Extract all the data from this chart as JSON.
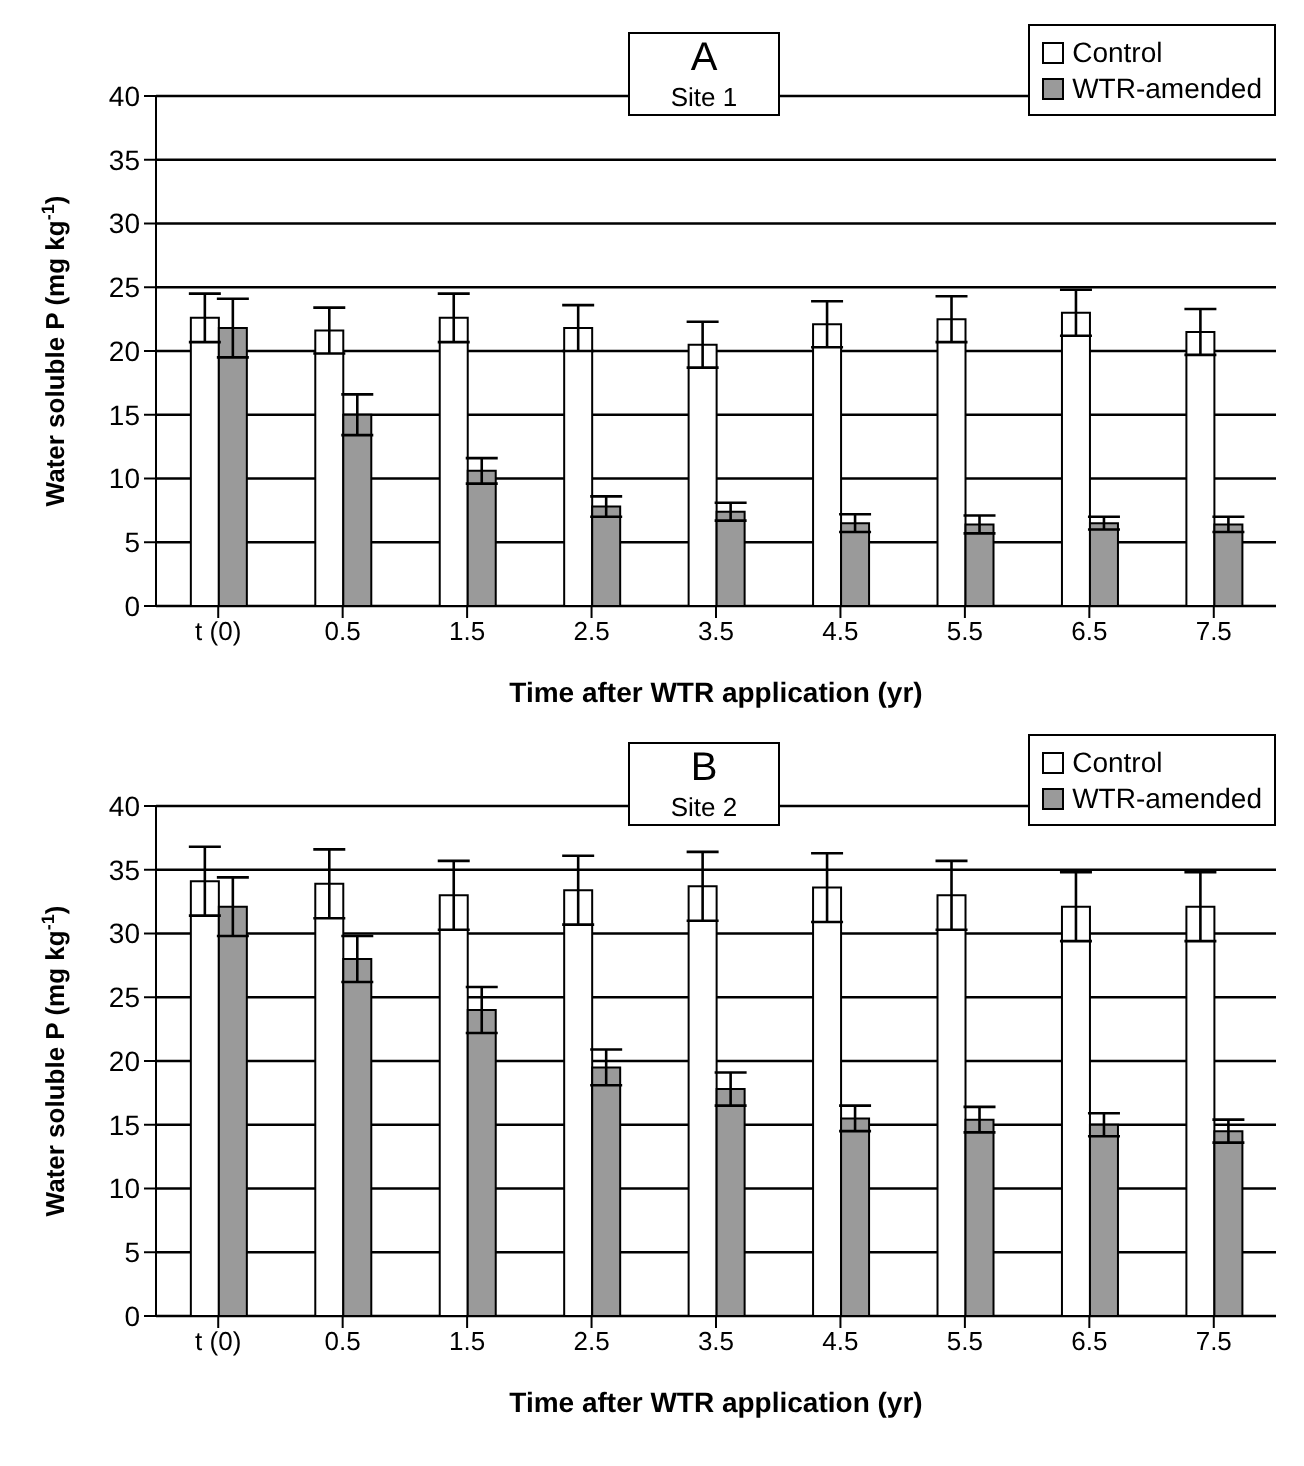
{
  "chart_data": [
    {
      "type": "bar",
      "title": "A",
      "subtitle": "Site 1",
      "xlabel": "Time after WTR application (yr)",
      "ylabel": "Water soluble P (mg kg$^{-1}$)",
      "categories": [
        "t (0)",
        "0.5",
        "1.5",
        "2.5",
        "3.5",
        "4.5",
        "5.5",
        "6.5",
        "7.5"
      ],
      "series": [
        {
          "name": "Control",
          "color": "#ffffff",
          "values": [
            22.6,
            21.6,
            22.6,
            21.8,
            20.5,
            22.1,
            22.5,
            23.0,
            21.5
          ],
          "errors": [
            1.9,
            1.8,
            1.9,
            1.8,
            1.8,
            1.8,
            1.8,
            1.8,
            1.8
          ]
        },
        {
          "name": "WTR-amended",
          "color": "#9a9a9a",
          "values": [
            21.8,
            15.0,
            10.6,
            7.8,
            7.4,
            6.5,
            6.4,
            6.5,
            6.4
          ],
          "errors": [
            2.3,
            1.6,
            1.0,
            0.8,
            0.7,
            0.7,
            0.7,
            0.5,
            0.6
          ]
        }
      ],
      "ylim": [
        0,
        40
      ],
      "yticks": [
        0,
        5,
        10,
        15,
        20,
        25,
        30,
        35,
        40
      ],
      "grid": "y",
      "legend": "top right"
    },
    {
      "type": "bar",
      "title": "B",
      "subtitle": "Site 2",
      "xlabel": "Time after WTR application (yr)",
      "ylabel": "Water soluble P (mg kg$^{-1}$)",
      "categories": [
        "t (0)",
        "0.5",
        "1.5",
        "2.5",
        "3.5",
        "4.5",
        "5.5",
        "6.5",
        "7.5"
      ],
      "series": [
        {
          "name": "Control",
          "color": "#ffffff",
          "values": [
            34.1,
            33.9,
            33.0,
            33.4,
            33.7,
            33.6,
            33.0,
            32.1,
            32.1
          ],
          "errors": [
            2.7,
            2.7,
            2.7,
            2.7,
            2.7,
            2.7,
            2.7,
            2.7,
            2.7
          ]
        },
        {
          "name": "WTR-amended",
          "color": "#9a9a9a",
          "values": [
            32.1,
            28.0,
            24.0,
            19.5,
            17.8,
            15.5,
            15.4,
            15.0,
            14.5
          ],
          "errors": [
            2.3,
            1.8,
            1.8,
            1.4,
            1.3,
            1.0,
            1.0,
            0.9,
            0.9
          ]
        }
      ],
      "ylim": [
        0,
        40
      ],
      "yticks": [
        0,
        5,
        10,
        15,
        20,
        25,
        30,
        35,
        40
      ],
      "grid": "y",
      "legend": "top right"
    }
  ]
}
